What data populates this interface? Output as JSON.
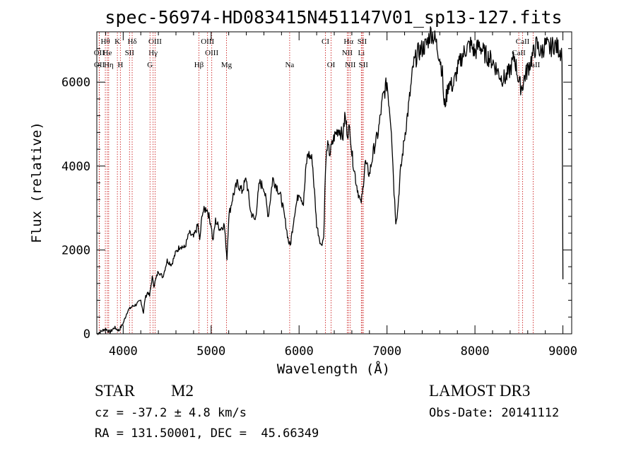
{
  "chart_data": {
    "type": "line",
    "title": "spec-56974-HD083415N451147V01_sp13-127.fits",
    "xlabel": "Wavelength (Å)",
    "ylabel": "Flux (relative)",
    "xlim": [
      3700,
      9100
    ],
    "ylim": [
      0,
      7200
    ],
    "xticks": [
      4000,
      5000,
      6000,
      7000,
      8000,
      9000
    ],
    "yticks": [
      0,
      2000,
      4000,
      6000
    ],
    "grid": false,
    "series": [
      {
        "name": "flux",
        "x": [
          3700,
          3750,
          3800,
          3850,
          3900,
          3950,
          4000,
          4050,
          4100,
          4150,
          4200,
          4230,
          4250,
          4280,
          4300,
          4330,
          4350,
          4400,
          4450,
          4500,
          4550,
          4600,
          4650,
          4700,
          4750,
          4800,
          4850,
          4870,
          4900,
          4950,
          5000,
          5020,
          5050,
          5100,
          5150,
          5180,
          5200,
          5250,
          5300,
          5350,
          5400,
          5450,
          5500,
          5550,
          5600,
          5650,
          5700,
          5750,
          5800,
          5850,
          5880,
          5900,
          5950,
          6000,
          6050,
          6080,
          6100,
          6150,
          6200,
          6250,
          6280,
          6300,
          6320,
          6350,
          6400,
          6450,
          6500,
          6520,
          6550,
          6580,
          6600,
          6650,
          6700,
          6720,
          6750,
          6800,
          6850,
          6900,
          6950,
          7000,
          7050,
          7080,
          7100,
          7120,
          7150,
          7200,
          7250,
          7300,
          7350,
          7400,
          7450,
          7500,
          7550,
          7600,
          7630,
          7650,
          7680,
          7700,
          7750,
          7800,
          7850,
          7900,
          7950,
          8000,
          8050,
          8100,
          8150,
          8200,
          8250,
          8300,
          8350,
          8400,
          8450,
          8500,
          8520,
          8540,
          8560,
          8600,
          8650,
          8700,
          8750,
          8800,
          8850,
          8900,
          8950,
          8990,
          9000
        ],
        "values": [
          0,
          60,
          120,
          40,
          150,
          80,
          250,
          550,
          650,
          700,
          800,
          500,
          850,
          1000,
          900,
          1350,
          1150,
          1500,
          1350,
          1750,
          1650,
          1950,
          2100,
          2050,
          2400,
          2300,
          2600,
          2200,
          2900,
          3000,
          2600,
          2200,
          2700,
          2500,
          2600,
          1800,
          2800,
          3300,
          3600,
          3400,
          3700,
          2900,
          2700,
          3600,
          3500,
          2800,
          3700,
          3500,
          3200,
          2600,
          2200,
          2100,
          2900,
          3400,
          3100,
          4000,
          4300,
          4150,
          2600,
          2100,
          2300,
          3900,
          4500,
          4300,
          4700,
          4900,
          4700,
          5200,
          4800,
          4900,
          4300,
          3600,
          3100,
          3300,
          4100,
          3800,
          4400,
          4800,
          5600,
          6000,
          4900,
          3400,
          2700,
          2900,
          3800,
          4700,
          5500,
          6400,
          6700,
          6800,
          6900,
          7200,
          7000,
          6600,
          6200,
          5400,
          5700,
          6000,
          5900,
          6300,
          6600,
          6800,
          6900,
          6700,
          6900,
          6700,
          6600,
          6500,
          6300,
          6100,
          6100,
          6300,
          6600,
          6000,
          5900,
          5900,
          6100,
          6300,
          6600,
          6900,
          6700,
          6900,
          6800,
          6900,
          6800,
          6700,
          1300
        ]
      }
    ],
    "lines": {
      "color": "#cc2222",
      "row1": [
        {
          "label": "Hθ",
          "x": 3797
        },
        {
          "label": "K",
          "x": 3934
        },
        {
          "label": "Hδ",
          "x": 4102
        },
        {
          "label": "OIII",
          "x": 4363
        },
        {
          "label": "OIII",
          "x": 4959
        },
        {
          "label": "CI",
          "x": 6300
        },
        {
          "label": "Hα",
          "x": 6563
        },
        {
          "label": "SII",
          "x": 6717
        },
        {
          "label": "CaII",
          "x": 8542
        }
      ],
      "row2": [
        {
          "label": "OII",
          "x": 3727
        },
        {
          "label": "He",
          "x": 3820
        },
        {
          "label": "SII",
          "x": 4072
        },
        {
          "label": "Hγ",
          "x": 4340
        },
        {
          "label": "OIII",
          "x": 5007
        },
        {
          "label": "NII",
          "x": 6548
        },
        {
          "label": "Li",
          "x": 6708
        },
        {
          "label": "CaII",
          "x": 8498
        }
      ],
      "row3": [
        {
          "label": "OII",
          "x": 3729
        },
        {
          "label": "Hη",
          "x": 3835
        },
        {
          "label": "H",
          "x": 3968
        },
        {
          "label": "G",
          "x": 4305
        },
        {
          "label": "Hβ",
          "x": 4861
        },
        {
          "label": "Mg",
          "x": 5175
        },
        {
          "label": "Na",
          "x": 5893
        },
        {
          "label": "OI",
          "x": 6364
        },
        {
          "label": "NII",
          "x": 6583
        },
        {
          "label": "SII",
          "x": 6731
        },
        {
          "label": "CaII",
          "x": 8662
        }
      ]
    }
  },
  "info": {
    "object_class": "STAR",
    "subclass": "M2",
    "survey": "LAMOST DR3",
    "cz": "cz = -37.2 ± 4.8 km/s",
    "obs_date": "Obs-Date: 20141112",
    "coords": "RA = 131.50001, DEC =  45.66349"
  }
}
